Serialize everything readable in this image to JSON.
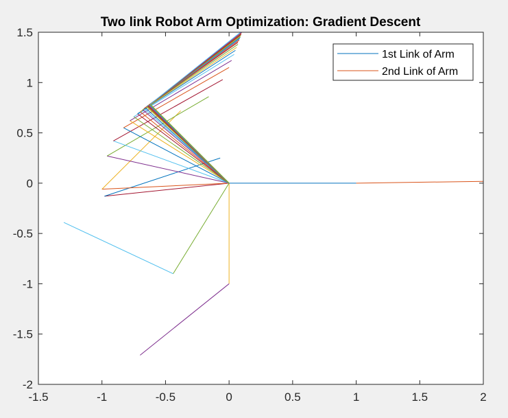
{
  "figure": {
    "background": "#f0f0f0",
    "axes_background": "#ffffff"
  },
  "chart_data": {
    "type": "line",
    "title": "Two link Robot Arm Optimization: Gradient Descent",
    "xlabel": "",
    "ylabel": "",
    "xlim": [
      -1.5,
      2
    ],
    "ylim": [
      -2,
      1.5
    ],
    "xticks": [
      -1.5,
      -1,
      -0.5,
      0,
      0.5,
      1,
      1.5,
      2
    ],
    "yticks": [
      -2,
      -1.5,
      -1,
      -0.5,
      0,
      0.5,
      1,
      1.5
    ],
    "xtick_labels": [
      "-1.5",
      "-1",
      "-0.5",
      "0",
      "0.5",
      "1",
      "1.5",
      "2"
    ],
    "ytick_labels": [
      "-2",
      "-1.5",
      "-1",
      "-0.5",
      "0",
      "0.5",
      "1",
      "1.5"
    ],
    "grid": false,
    "box": true,
    "legend": {
      "placement": "top-right",
      "entries": [
        {
          "label": "1st Link of Arm",
          "color": "#0072bd"
        },
        {
          "label": "2nd Link of Arm",
          "color": "#d95319"
        }
      ]
    },
    "color_cycle": [
      "#0072bd",
      "#d95319",
      "#edb120",
      "#7e2f8e",
      "#77ac30",
      "#4dbeee",
      "#a2142f"
    ],
    "arm_configurations": [
      {
        "elbow": [
          1,
          0
        ],
        "end": [
          2.1,
          0.02
        ]
      },
      {
        "elbow": [
          0,
          -1
        ],
        "end": [
          -0.7,
          -1.71
        ]
      },
      {
        "elbow": [
          -0.44,
          -0.9
        ],
        "end": [
          -1.3,
          -0.39
        ]
      },
      {
        "elbow": [
          -0.98,
          -0.13
        ],
        "end": [
          -0.07,
          0.25
        ]
      },
      {
        "elbow": [
          -1,
          -0.06
        ],
        "end": [
          -0.38,
          0.72
        ]
      },
      {
        "elbow": [
          -0.96,
          0.27
        ],
        "end": [
          -0.16,
          0.86
        ]
      },
      {
        "elbow": [
          -0.91,
          0.42
        ],
        "end": [
          -0.05,
          1.03
        ]
      },
      {
        "elbow": [
          -0.83,
          0.55
        ],
        "end": [
          0,
          1.15
        ]
      },
      {
        "elbow": [
          -0.78,
          0.62
        ],
        "end": [
          0.02,
          1.22
        ]
      },
      {
        "elbow": [
          -0.75,
          0.66
        ],
        "end": [
          0.04,
          1.28
        ]
      },
      {
        "elbow": [
          -0.72,
          0.69
        ],
        "end": [
          0.05,
          1.32
        ]
      },
      {
        "elbow": [
          -0.7,
          0.71
        ],
        "end": [
          0.06,
          1.35
        ]
      },
      {
        "elbow": [
          -0.68,
          0.73
        ],
        "end": [
          0.07,
          1.38
        ]
      },
      {
        "elbow": [
          -0.67,
          0.74
        ],
        "end": [
          0.07,
          1.4
        ]
      },
      {
        "elbow": [
          -0.66,
          0.75
        ],
        "end": [
          0.08,
          1.42
        ]
      },
      {
        "elbow": [
          -0.65,
          0.76
        ],
        "end": [
          0.08,
          1.43
        ]
      },
      {
        "elbow": [
          -0.645,
          0.764
        ],
        "end": [
          0.085,
          1.44
        ]
      },
      {
        "elbow": [
          -0.64,
          0.768
        ],
        "end": [
          0.088,
          1.45
        ]
      },
      {
        "elbow": [
          -0.636,
          0.772
        ],
        "end": [
          0.09,
          1.46
        ]
      },
      {
        "elbow": [
          -0.632,
          0.775
        ],
        "end": [
          0.093,
          1.47
        ]
      },
      {
        "elbow": [
          -0.628,
          0.778
        ],
        "end": [
          0.095,
          1.48
        ]
      },
      {
        "elbow": [
          -0.625,
          0.78
        ],
        "end": [
          0.097,
          1.49
        ]
      },
      {
        "elbow": [
          -0.622,
          0.783
        ],
        "end": [
          0.1,
          1.5
        ]
      },
      {
        "elbow": [
          -0.62,
          0.785
        ],
        "end": [
          0.1,
          1.51
        ]
      }
    ]
  }
}
